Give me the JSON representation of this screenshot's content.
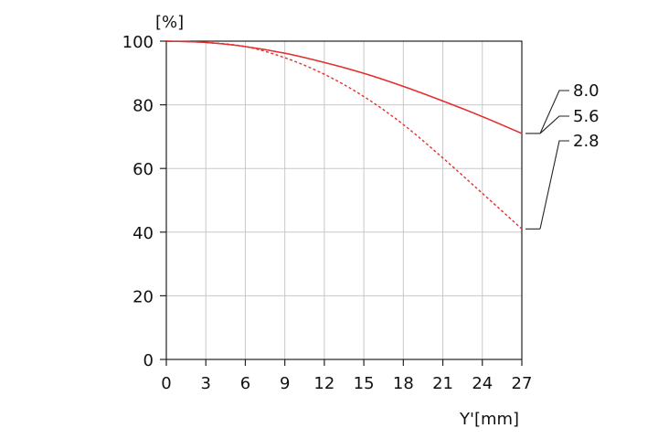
{
  "chart_data": {
    "type": "line",
    "title": "",
    "xlabel": "Y'[mm]",
    "ylabel": "[%]",
    "xlim": [
      0,
      27
    ],
    "ylim": [
      0,
      100
    ],
    "x_ticks": [
      0,
      3,
      6,
      9,
      12,
      15,
      18,
      21,
      24,
      27
    ],
    "y_ticks": [
      0,
      20,
      40,
      60,
      80,
      100
    ],
    "grid": true,
    "series": [
      {
        "name": "8.0",
        "line_style": "solid",
        "color": "#e53030",
        "x": [
          0,
          3,
          6,
          9,
          12,
          15,
          18,
          21,
          24,
          27
        ],
        "y": [
          100,
          99.6,
          98.3,
          96.2,
          93.3,
          89.9,
          85.8,
          81.2,
          76.3,
          71
        ]
      },
      {
        "name": "5.6",
        "line_style": "solid",
        "color": "#e53030",
        "x": [
          0,
          3,
          6,
          9,
          12,
          15,
          18,
          21,
          24,
          27
        ],
        "y": [
          100,
          99.6,
          98.3,
          96.2,
          93.3,
          89.9,
          85.8,
          81.2,
          76.3,
          71
        ]
      },
      {
        "name": "2.8",
        "line_style": "dotted",
        "color": "#e53030",
        "x": [
          0,
          3,
          6,
          9,
          12,
          15,
          18,
          21,
          24,
          27
        ],
        "y": [
          100,
          99.6,
          98.3,
          94.8,
          89.6,
          82.6,
          73.8,
          63.3,
          52.2,
          41
        ]
      }
    ],
    "legend": [
      "8.0",
      "5.6",
      "2.8"
    ],
    "legend_placement": "right"
  }
}
